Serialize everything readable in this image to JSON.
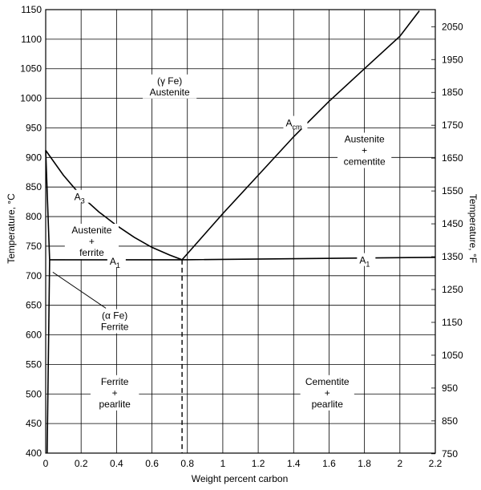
{
  "chart_data": {
    "type": "line",
    "title": "",
    "xlabel": "Weight percent carbon",
    "ylabel": "Temperature, °C",
    "y2label": "Temperature, °F",
    "xlim": [
      0,
      2.2
    ],
    "ylim": [
      400,
      1150
    ],
    "grid": true,
    "x_ticks": [
      0,
      0.2,
      0.4,
      0.6,
      0.8,
      1,
      1.2,
      1.4,
      1.6,
      1.8,
      2,
      2.2
    ],
    "x_tick_labels": [
      "0",
      "0.2",
      "0.4",
      "0.6",
      "0.8",
      "1",
      "1.2",
      "1.4",
      "1.6",
      "1.8",
      "2",
      "2.2"
    ],
    "y_ticks": [
      400,
      450,
      500,
      550,
      600,
      650,
      700,
      750,
      800,
      850,
      900,
      950,
      1000,
      1050,
      1100,
      1150
    ],
    "y_tick_labels": [
      "400",
      "450",
      "500",
      "550",
      "600",
      "650",
      "700",
      "750",
      "800",
      "850",
      "900",
      "950",
      "1000",
      "1050",
      "1100",
      "1150"
    ],
    "y2_ticks_F": [
      750,
      850,
      950,
      1050,
      1150,
      1250,
      1350,
      1450,
      1550,
      1650,
      1750,
      1850,
      1950,
      2050
    ],
    "y2_tick_labels": [
      "750",
      "850",
      "950",
      "1050",
      "1150",
      "1250",
      "1350",
      "1450",
      "1550",
      "1650",
      "1750",
      "1850",
      "1950",
      "2050"
    ],
    "series": [
      {
        "name": "A3",
        "x": [
          0,
          0.1,
          0.2,
          0.3,
          0.4,
          0.5,
          0.6,
          0.7,
          0.77
        ],
        "y": [
          912,
          870,
          835,
          808,
          785,
          765,
          748,
          735,
          727
        ]
      },
      {
        "name": "Acm",
        "x": [
          0.77,
          1.0,
          1.2,
          1.4,
          1.6,
          1.8,
          2.0,
          2.11
        ],
        "y": [
          727,
          805,
          870,
          935,
          995,
          1050,
          1105,
          1148
        ]
      },
      {
        "name": "A1",
        "x": [
          0.022,
          0.77,
          2.2
        ],
        "y": [
          727,
          727,
          731
        ]
      },
      {
        "x": [
          0,
          0.022
        ],
        "y": [
          912,
          727
        ]
      },
      {
        "x": [
          0.022,
          0.008
        ],
        "y": [
          727,
          400
        ]
      }
    ],
    "eutectoid_composition": 0.77,
    "eutectoid_temperature": 727,
    "annotations": [
      {
        "id": "gamma",
        "lines": [
          "(γ Fe)",
          "Austenite"
        ],
        "x": 0.7,
        "y": 1020
      },
      {
        "id": "acm",
        "text": "A",
        "sub": "cm",
        "x": 1.41,
        "y": 958
      },
      {
        "id": "aus-cem",
        "lines": [
          "Austenite",
          "+",
          "cementite"
        ],
        "x": 1.8,
        "y": 912
      },
      {
        "id": "a3",
        "text": "A",
        "sub": "3",
        "x": 0.2,
        "y": 833
      },
      {
        "id": "aus-fer",
        "lines": [
          "Austenite",
          "+",
          "ferrite"
        ],
        "x": 0.26,
        "y": 758
      },
      {
        "id": "a1-left",
        "text": "A",
        "sub": "1",
        "x": 0.4,
        "y": 724
      },
      {
        "id": "a1-right",
        "text": "A",
        "sub": "1",
        "x": 1.81,
        "y": 726
      },
      {
        "id": "alpha",
        "lines": [
          "(α Fe)",
          "Ferrite"
        ],
        "x": 0.39,
        "y": 623
      },
      {
        "id": "fer-pearl",
        "lines": [
          "Ferrite",
          "+",
          "pearlite"
        ],
        "x": 0.39,
        "y": 502
      },
      {
        "id": "cem-pearl",
        "lines": [
          "Cementite",
          "+",
          "pearlite"
        ],
        "x": 1.59,
        "y": 502
      }
    ]
  }
}
